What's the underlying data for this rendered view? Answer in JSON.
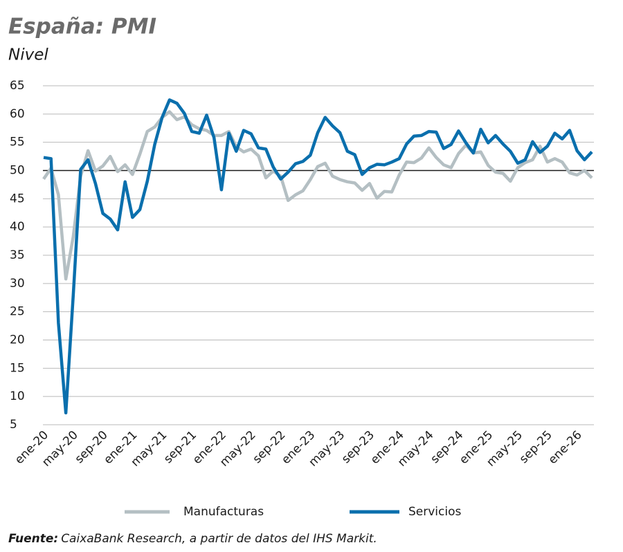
{
  "chart_data": {
    "type": "line",
    "title": "España: PMI",
    "subtitle": "Nivel",
    "source_label": "Fuente:",
    "source": "CaixaBank Research, a partir de datos del IHS Markit.",
    "categories": [
      "ene-20",
      null,
      null,
      null,
      "may-20",
      null,
      null,
      null,
      "sep-20",
      null,
      null,
      null,
      "ene-21",
      null,
      null,
      null,
      "may-21",
      null,
      null,
      null,
      "sep-21",
      null,
      null,
      null,
      "ene-22",
      null,
      null,
      null,
      "may-22",
      null,
      null,
      null,
      "sep-22",
      null,
      null,
      null,
      "ene-23",
      null,
      null,
      null,
      "may-23",
      null,
      null,
      null,
      "sep-23",
      null,
      null,
      null,
      "ene-24",
      null,
      null,
      null,
      "may-24",
      null,
      null,
      null,
      "sep-24",
      null,
      null,
      null,
      "ene-25",
      null,
      null,
      null,
      "may-25",
      null,
      null,
      null,
      "sep-25",
      null,
      null,
      null,
      "ene-26",
      null,
      null
    ],
    "series": [
      {
        "name": "Manufacturas",
        "color": "#b4bfc3",
        "values": [
          48.5,
          50.4,
          45.7,
          30.8,
          38.3,
          49.0,
          53.5,
          49.9,
          50.8,
          52.5,
          49.8,
          51.0,
          49.3,
          52.9,
          56.9,
          57.7,
          59.4,
          60.4,
          59.0,
          59.5,
          58.1,
          57.4,
          57.1,
          56.2,
          56.2,
          56.9,
          54.2,
          53.3,
          53.8,
          52.6,
          48.7,
          49.9,
          49.0,
          44.7,
          45.7,
          46.4,
          48.4,
          50.7,
          51.3,
          49.0,
          48.4,
          48.0,
          47.8,
          46.5,
          47.7,
          45.1,
          46.3,
          46.2,
          49.2,
          51.5,
          51.4,
          52.2,
          54.0,
          52.3,
          51.0,
          50.5,
          53.0,
          54.5,
          53.1,
          53.3,
          50.9,
          49.7,
          49.5,
          48.1,
          50.5,
          51.4,
          51.9,
          54.3,
          51.5,
          52.1,
          51.5,
          49.6,
          49.2,
          50.0,
          48.7
        ]
      },
      {
        "name": "Servicios",
        "color": "#0a6fad",
        "values": [
          52.3,
          52.1,
          23.0,
          7.1,
          27.9,
          50.2,
          51.9,
          47.7,
          42.4,
          41.4,
          39.5,
          48.0,
          41.7,
          43.1,
          48.1,
          54.6,
          59.4,
          62.5,
          61.9,
          60.1,
          56.9,
          56.6,
          59.8,
          55.8,
          46.6,
          56.6,
          53.4,
          57.1,
          56.5,
          54.0,
          53.8,
          50.6,
          48.5,
          49.7,
          51.2,
          51.6,
          52.7,
          56.7,
          59.4,
          57.9,
          56.7,
          53.4,
          52.8,
          49.3,
          50.5,
          51.1,
          51.0,
          51.5,
          52.1,
          54.7,
          56.1,
          56.2,
          56.9,
          56.8,
          53.9,
          54.6,
          57.0,
          54.9,
          53.1,
          57.3,
          54.9,
          56.2,
          54.7,
          53.4,
          51.3,
          51.9,
          55.1,
          53.2,
          54.3,
          56.6,
          55.6,
          57.1,
          53.5,
          51.9,
          53.3
        ]
      }
    ],
    "ylim": [
      5,
      65
    ],
    "yticks": [
      5,
      10,
      15,
      20,
      25,
      30,
      35,
      40,
      45,
      50,
      55,
      60,
      65
    ],
    "grid": true,
    "hline": 50
  }
}
